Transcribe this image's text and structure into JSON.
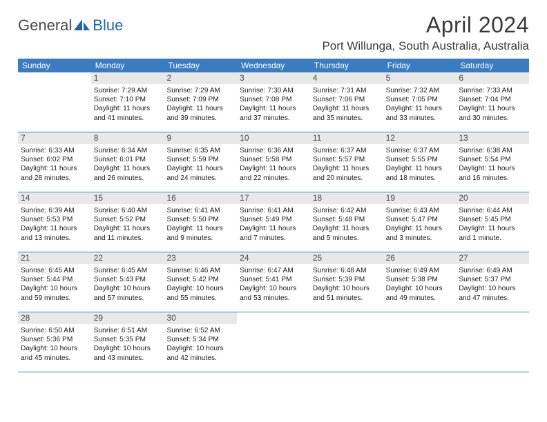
{
  "logo": {
    "word1": "General",
    "word2": "Blue"
  },
  "title": "April 2024",
  "location": "Port Willunga, South Australia, Australia",
  "colors": {
    "header_bg": "#3b7bbf",
    "header_text": "#ffffff",
    "daynum_bg": "#e8e8e8",
    "border": "#3b7bbf",
    "text": "#1a1a1a",
    "logo_gray": "#4a4a4a",
    "logo_blue": "#1f66ad"
  },
  "day_headers": [
    "Sunday",
    "Monday",
    "Tuesday",
    "Wednesday",
    "Thursday",
    "Friday",
    "Saturday"
  ],
  "weeks": [
    [
      null,
      {
        "n": "1",
        "sr": "Sunrise: 7:29 AM",
        "ss": "Sunset: 7:10 PM",
        "dl": "Daylight: 11 hours and 41 minutes."
      },
      {
        "n": "2",
        "sr": "Sunrise: 7:29 AM",
        "ss": "Sunset: 7:09 PM",
        "dl": "Daylight: 11 hours and 39 minutes."
      },
      {
        "n": "3",
        "sr": "Sunrise: 7:30 AM",
        "ss": "Sunset: 7:08 PM",
        "dl": "Daylight: 11 hours and 37 minutes."
      },
      {
        "n": "4",
        "sr": "Sunrise: 7:31 AM",
        "ss": "Sunset: 7:06 PM",
        "dl": "Daylight: 11 hours and 35 minutes."
      },
      {
        "n": "5",
        "sr": "Sunrise: 7:32 AM",
        "ss": "Sunset: 7:05 PM",
        "dl": "Daylight: 11 hours and 33 minutes."
      },
      {
        "n": "6",
        "sr": "Sunrise: 7:33 AM",
        "ss": "Sunset: 7:04 PM",
        "dl": "Daylight: 11 hours and 30 minutes."
      }
    ],
    [
      {
        "n": "7",
        "sr": "Sunrise: 6:33 AM",
        "ss": "Sunset: 6:02 PM",
        "dl": "Daylight: 11 hours and 28 minutes."
      },
      {
        "n": "8",
        "sr": "Sunrise: 6:34 AM",
        "ss": "Sunset: 6:01 PM",
        "dl": "Daylight: 11 hours and 26 minutes."
      },
      {
        "n": "9",
        "sr": "Sunrise: 6:35 AM",
        "ss": "Sunset: 5:59 PM",
        "dl": "Daylight: 11 hours and 24 minutes."
      },
      {
        "n": "10",
        "sr": "Sunrise: 6:36 AM",
        "ss": "Sunset: 5:58 PM",
        "dl": "Daylight: 11 hours and 22 minutes."
      },
      {
        "n": "11",
        "sr": "Sunrise: 6:37 AM",
        "ss": "Sunset: 5:57 PM",
        "dl": "Daylight: 11 hours and 20 minutes."
      },
      {
        "n": "12",
        "sr": "Sunrise: 6:37 AM",
        "ss": "Sunset: 5:55 PM",
        "dl": "Daylight: 11 hours and 18 minutes."
      },
      {
        "n": "13",
        "sr": "Sunrise: 6:38 AM",
        "ss": "Sunset: 5:54 PM",
        "dl": "Daylight: 11 hours and 16 minutes."
      }
    ],
    [
      {
        "n": "14",
        "sr": "Sunrise: 6:39 AM",
        "ss": "Sunset: 5:53 PM",
        "dl": "Daylight: 11 hours and 13 minutes."
      },
      {
        "n": "15",
        "sr": "Sunrise: 6:40 AM",
        "ss": "Sunset: 5:52 PM",
        "dl": "Daylight: 11 hours and 11 minutes."
      },
      {
        "n": "16",
        "sr": "Sunrise: 6:41 AM",
        "ss": "Sunset: 5:50 PM",
        "dl": "Daylight: 11 hours and 9 minutes."
      },
      {
        "n": "17",
        "sr": "Sunrise: 6:41 AM",
        "ss": "Sunset: 5:49 PM",
        "dl": "Daylight: 11 hours and 7 minutes."
      },
      {
        "n": "18",
        "sr": "Sunrise: 6:42 AM",
        "ss": "Sunset: 5:48 PM",
        "dl": "Daylight: 11 hours and 5 minutes."
      },
      {
        "n": "19",
        "sr": "Sunrise: 6:43 AM",
        "ss": "Sunset: 5:47 PM",
        "dl": "Daylight: 11 hours and 3 minutes."
      },
      {
        "n": "20",
        "sr": "Sunrise: 6:44 AM",
        "ss": "Sunset: 5:45 PM",
        "dl": "Daylight: 11 hours and 1 minute."
      }
    ],
    [
      {
        "n": "21",
        "sr": "Sunrise: 6:45 AM",
        "ss": "Sunset: 5:44 PM",
        "dl": "Daylight: 10 hours and 59 minutes."
      },
      {
        "n": "22",
        "sr": "Sunrise: 6:45 AM",
        "ss": "Sunset: 5:43 PM",
        "dl": "Daylight: 10 hours and 57 minutes."
      },
      {
        "n": "23",
        "sr": "Sunrise: 6:46 AM",
        "ss": "Sunset: 5:42 PM",
        "dl": "Daylight: 10 hours and 55 minutes."
      },
      {
        "n": "24",
        "sr": "Sunrise: 6:47 AM",
        "ss": "Sunset: 5:41 PM",
        "dl": "Daylight: 10 hours and 53 minutes."
      },
      {
        "n": "25",
        "sr": "Sunrise: 6:48 AM",
        "ss": "Sunset: 5:39 PM",
        "dl": "Daylight: 10 hours and 51 minutes."
      },
      {
        "n": "26",
        "sr": "Sunrise: 6:49 AM",
        "ss": "Sunset: 5:38 PM",
        "dl": "Daylight: 10 hours and 49 minutes."
      },
      {
        "n": "27",
        "sr": "Sunrise: 6:49 AM",
        "ss": "Sunset: 5:37 PM",
        "dl": "Daylight: 10 hours and 47 minutes."
      }
    ],
    [
      {
        "n": "28",
        "sr": "Sunrise: 6:50 AM",
        "ss": "Sunset: 5:36 PM",
        "dl": "Daylight: 10 hours and 45 minutes."
      },
      {
        "n": "29",
        "sr": "Sunrise: 6:51 AM",
        "ss": "Sunset: 5:35 PM",
        "dl": "Daylight: 10 hours and 43 minutes."
      },
      {
        "n": "30",
        "sr": "Sunrise: 6:52 AM",
        "ss": "Sunset: 5:34 PM",
        "dl": "Daylight: 10 hours and 42 minutes."
      },
      null,
      null,
      null,
      null
    ]
  ]
}
